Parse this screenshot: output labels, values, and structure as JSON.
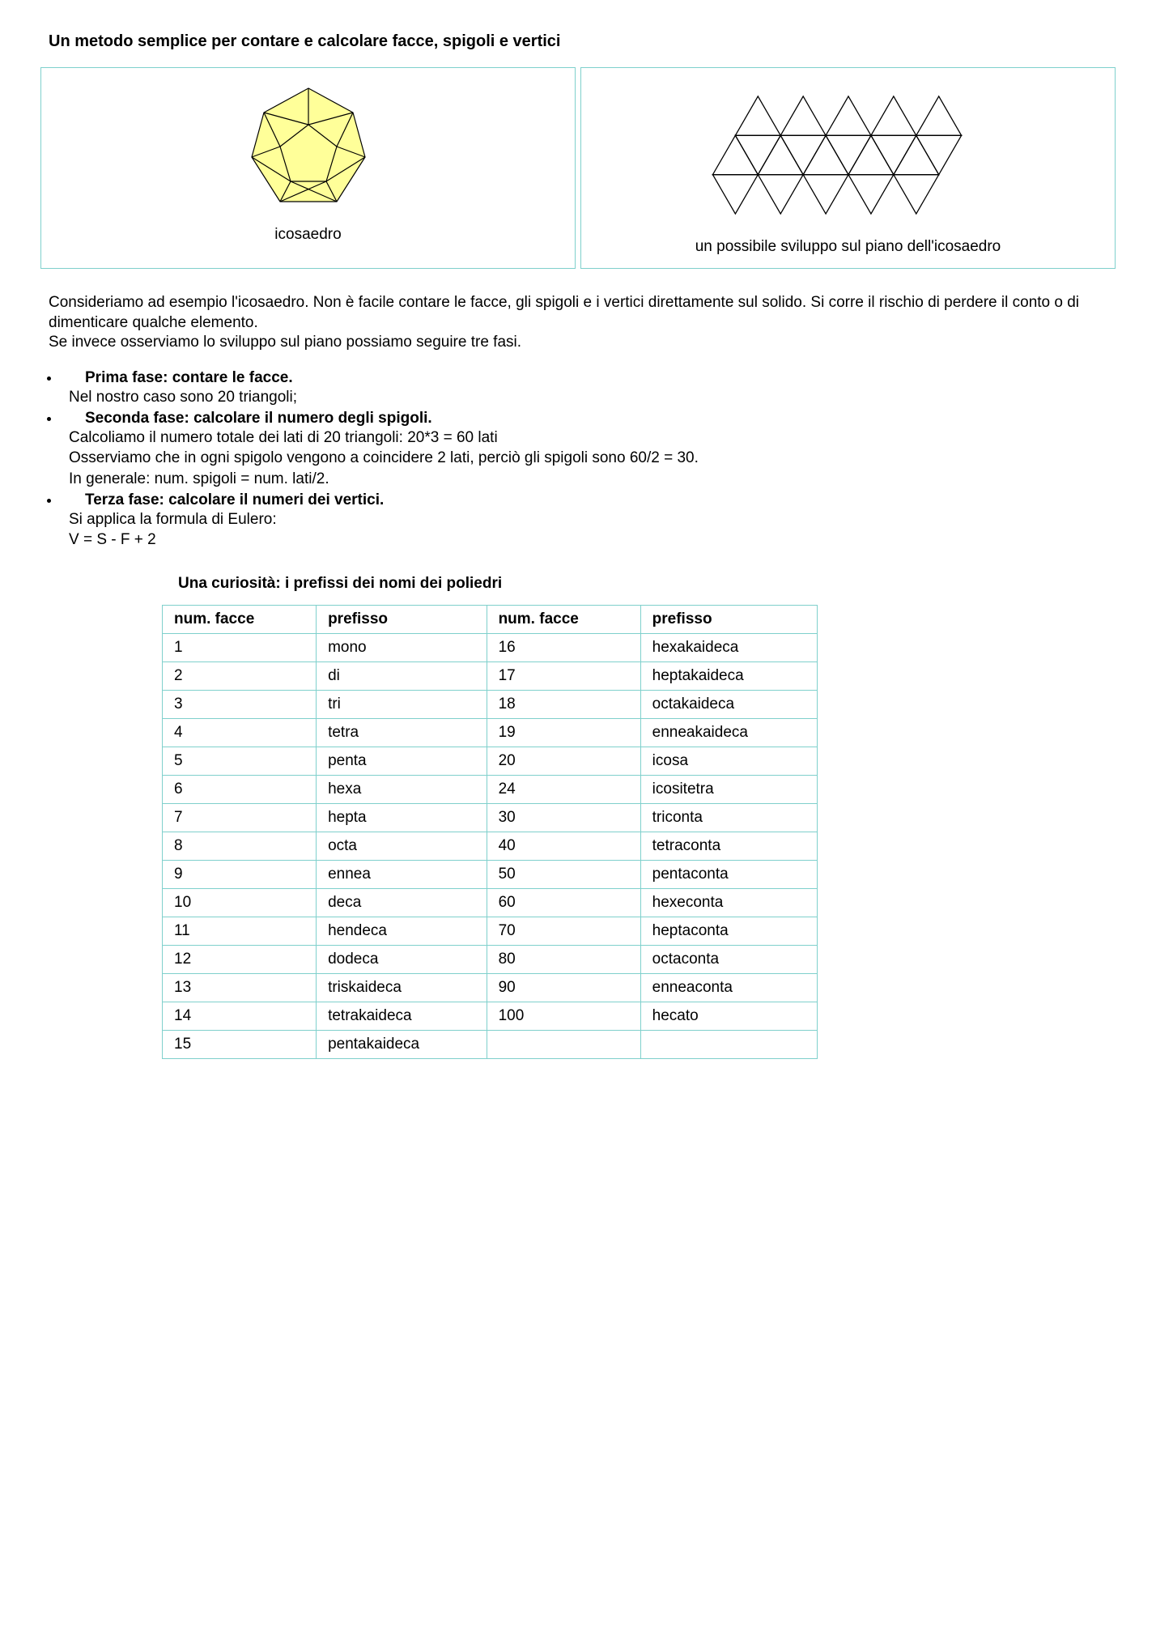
{
  "title": "Un metodo semplice per contare e calcolare facce, spigoli e vertici",
  "figures": {
    "left_caption": "icosaedro",
    "right_caption": "un possibile sviluppo sul piano dell'icosaedro",
    "icosa_fill": "#ffff99",
    "stroke": "#000000"
  },
  "intro": {
    "p1": "Consideriamo ad esempio l'icosaedro. Non è facile contare le facce, gli spigoli e i vertici direttamente sul solido. Si corre il rischio di perdere il conto o di dimenticare qualche elemento.",
    "p2": "Se invece osserviamo lo sviluppo sul piano possiamo seguire tre fasi."
  },
  "phases": [
    {
      "title": "Prima fase: contare le facce.",
      "body": "Nel nostro caso sono 20 triangoli;"
    },
    {
      "title": "Seconda fase: calcolare il numero degli spigoli.",
      "body": "Calcoliamo il numero totale dei lati di 20 triangoli: 20*3 = 60 lati\nOsserviamo che in ogni spigolo vengono a coincidere 2 lati, perciò gli spigoli sono 60/2 = 30.\nIn generale: num. spigoli = num. lati/2."
    },
    {
      "title": "Terza fase: calcolare il numeri dei vertici.",
      "body": "Si applica la formula di Eulero:\nV = S - F + 2"
    }
  ],
  "curio_title": "Una curiosità: i prefissi dei nomi dei poliedri",
  "table": {
    "headers": [
      "num. facce",
      "prefisso",
      "num. facce",
      "prefisso"
    ],
    "rows": [
      [
        "1",
        "mono",
        "16",
        "hexakaideca"
      ],
      [
        "2",
        "di",
        "17",
        "heptakaideca"
      ],
      [
        "3",
        "tri",
        "18",
        "octakaideca"
      ],
      [
        "4",
        "tetra",
        "19",
        "enneakaideca"
      ],
      [
        "5",
        "penta",
        "20",
        "icosa"
      ],
      [
        "6",
        "hexa",
        "24",
        "icositetra"
      ],
      [
        "7",
        "hepta",
        "30",
        "triconta"
      ],
      [
        "8",
        "octa",
        "40",
        "tetraconta"
      ],
      [
        "9",
        "ennea",
        "50",
        "pentaconta"
      ],
      [
        "10",
        "deca",
        "60",
        "hexeconta"
      ],
      [
        "11",
        "hendeca",
        "70",
        "heptaconta"
      ],
      [
        "12",
        "dodeca",
        "80",
        "octaconta"
      ],
      [
        "13",
        "triskaideca",
        "90",
        "enneaconta"
      ],
      [
        "14",
        "tetrakaideca",
        "100",
        "hecato"
      ],
      [
        "15",
        "pentakaideca",
        "",
        ""
      ]
    ],
    "border_color": "#7fd0cc"
  }
}
